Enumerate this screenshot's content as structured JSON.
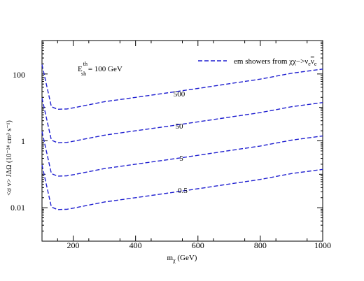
{
  "chart_data": {
    "type": "line",
    "xlabel_main": "m",
    "xlabel_sub": "χ",
    "xlabel_unit": " (GeV)",
    "ylabel": "<σ v> JΔΩ (10⁻²⁴ cm³ s⁻¹)",
    "xlim": [
      100,
      1000
    ],
    "ylim": [
      0.001,
      1000
    ],
    "yscale": "log",
    "x_ticks": [
      200,
      400,
      600,
      800,
      1000
    ],
    "x_tick_labels": [
      "200",
      "400",
      "600",
      "800",
      "1000"
    ],
    "y_ticks": [
      0.01,
      1,
      100
    ],
    "y_tick_labels": [
      "0.01",
      "1",
      "100"
    ],
    "annotation": {
      "main": "E",
      "sup": "th",
      "sub": "sh",
      "rest": " = 100 GeV"
    },
    "legend": {
      "position": "top-right",
      "label_prefix": "em showers from χχ−>ν",
      "label_sub1": "e",
      "label_nu": "ν",
      "label_sub2": "e"
    },
    "series": [
      {
        "name": "500",
        "x": [
          100,
          130,
          150,
          180,
          200,
          300,
          400,
          500,
          600,
          700,
          800,
          900,
          1000
        ],
        "y": [
          190,
          10.5,
          8.8,
          9.0,
          9.7,
          14.8,
          20,
          27,
          37,
          51,
          70,
          105,
          140
        ]
      },
      {
        "name": "50",
        "x": [
          100,
          130,
          150,
          180,
          200,
          300,
          400,
          500,
          600,
          700,
          800,
          900,
          1000
        ],
        "y": [
          19,
          1.05,
          0.88,
          0.9,
          0.97,
          1.48,
          2.0,
          2.7,
          3.7,
          5.1,
          7.0,
          10.5,
          14
        ]
      },
      {
        "name": "5",
        "x": [
          100,
          130,
          150,
          180,
          200,
          300,
          400,
          500,
          600,
          700,
          800,
          900,
          1000
        ],
        "y": [
          1.9,
          0.105,
          0.088,
          0.09,
          0.097,
          0.148,
          0.2,
          0.27,
          0.37,
          0.51,
          0.7,
          1.05,
          1.4
        ]
      },
      {
        "name": "0.5",
        "x": [
          100,
          130,
          150,
          180,
          200,
          300,
          400,
          500,
          600,
          700,
          800,
          900,
          1000
        ],
        "y": [
          0.19,
          0.0105,
          0.0088,
          0.009,
          0.0097,
          0.0148,
          0.02,
          0.027,
          0.037,
          0.051,
          0.07,
          0.105,
          0.14
        ]
      }
    ],
    "line_color": "#1f1fd0"
  }
}
